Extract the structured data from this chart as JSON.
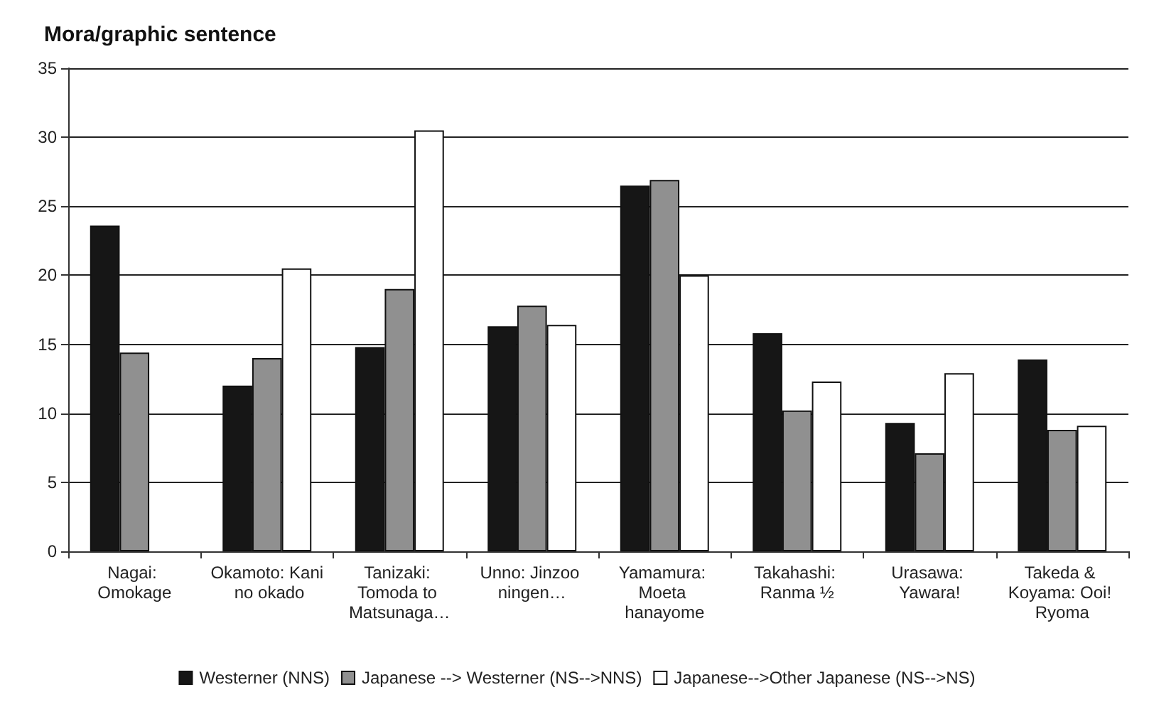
{
  "chart_data": {
    "type": "bar",
    "title": "Mora/graphic sentence",
    "categories": [
      "Nagai: Omokage",
      "Okamoto: Kani no okado",
      "Tanizaki: Tomoda to Matsunaga…",
      "Unno: Jinzoo ningen…",
      "Yamamura: Moeta hanayome",
      "Takahashi: Ranma ½",
      "Urasawa: Yawara!",
      "Takeda & Koyama: Ooi! Ryoma"
    ],
    "series": [
      {
        "name": "Westerner (NNS)",
        "color": "#161616",
        "values": [
          23.6,
          12,
          14.8,
          16.3,
          26.5,
          15.8,
          9.3,
          13.9
        ]
      },
      {
        "name": "Japanese --> Westerner (NS-->NNS)",
        "color": "#909090",
        "values": [
          14.4,
          14,
          19,
          17.8,
          26.9,
          10.2,
          7.1,
          8.8
        ]
      },
      {
        "name": "Japanese-->Other Japanese (NS-->NS)",
        "color": "#ffffff",
        "values": [
          null,
          20.5,
          30.5,
          16.4,
          20,
          12.3,
          12.9,
          9.1
        ]
      }
    ],
    "ylim": [
      0,
      35
    ],
    "yticks": [
      0,
      5,
      10,
      15,
      20,
      25,
      30,
      35
    ],
    "grid": "y",
    "legend": "bottom"
  }
}
